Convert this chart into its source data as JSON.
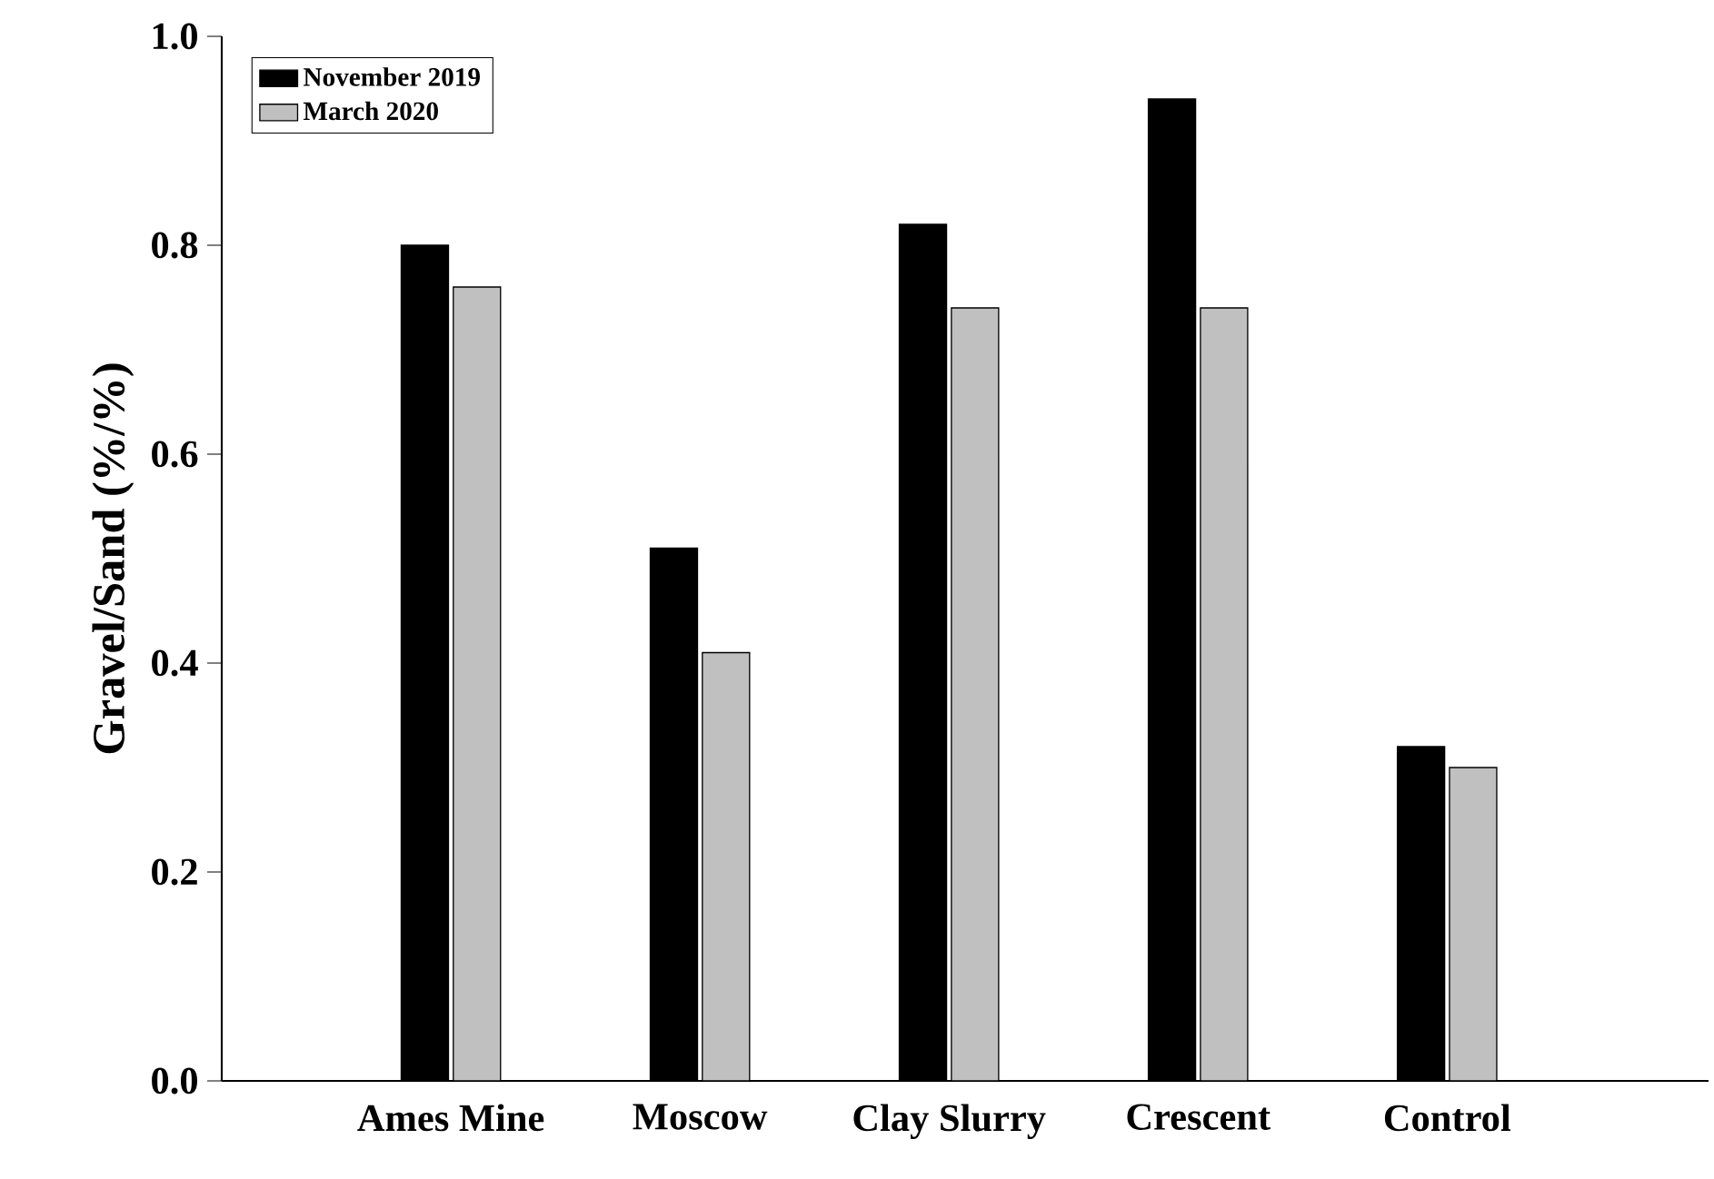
{
  "chart_data": {
    "type": "bar",
    "ylabel": "Gravel/Sand (%/%)",
    "categories": [
      "Ames Mine",
      "Moscow",
      "Clay Slurry",
      "Crescent",
      "Control"
    ],
    "series": [
      {
        "name": "November 2019",
        "color": "#000000",
        "values": [
          0.8,
          0.51,
          0.82,
          0.94,
          0.32
        ]
      },
      {
        "name": "March 2020",
        "color": "#c0c0c0",
        "values": [
          0.76,
          0.41,
          0.74,
          0.74,
          0.3
        ]
      }
    ],
    "ylim": [
      0,
      1.0
    ],
    "yticks": [
      {
        "value": 0,
        "label": "0.0"
      },
      {
        "value": 0.2,
        "label": "0.2"
      },
      {
        "value": 0.4,
        "label": "0.4"
      },
      {
        "value": 0.6,
        "label": "0.6"
      },
      {
        "value": 0.8,
        "label": "0.8"
      },
      {
        "value": 1.0,
        "label": "1.0"
      }
    ],
    "legend": "top left",
    "grid": false
  }
}
